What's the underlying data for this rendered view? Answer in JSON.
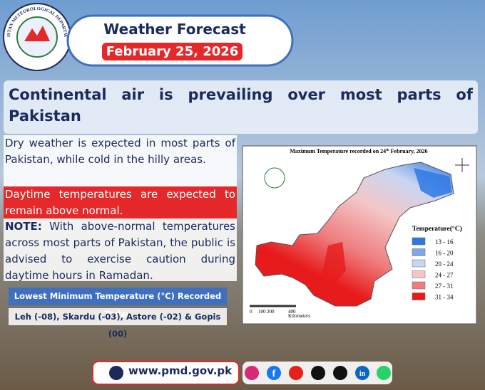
{
  "header": {
    "title": "Weather Forecast",
    "date": "February 25, 2026",
    "logo_text": "PAKISTAN METEOROLOGICAL DEPARTMENT"
  },
  "headline": "Continental air is prevailing over most parts of Pakistan",
  "body": {
    "paragraph": "Dry weather is expected in most parts of Pakistan, while cold in the hilly areas.",
    "highlight": "Daytime temperatures are expected to remain above normal.",
    "note_label": "NOTE:",
    "note_text": "With above-normal temperatures across most parts of Pakistan, the public is advised to exercise caution during daytime hours in Ramadan."
  },
  "lowest_min": {
    "title": "Lowest Minimum Temperature (°C) Recorded Today",
    "text": "Leh (-08), Skardu (-03), Astore (-02) & Gopis (00)"
  },
  "map": {
    "title_pre": "Maximum Temperature  recorded on 24",
    "title_sup": "th",
    "title_post": " February, 2026",
    "legend_title": "Temperature(°C)",
    "legend": [
      {
        "label": "13 - 16",
        "color": "#2f78e4"
      },
      {
        "label": "16 - 20",
        "color": "#7ea8ec"
      },
      {
        "label": "20 - 24",
        "color": "#c9d6f3"
      },
      {
        "label": "24 - 27",
        "color": "#f4c6c6"
      },
      {
        "label": "27 - 31",
        "color": "#ee7c7e"
      },
      {
        "label": "31 - 34",
        "color": "#e71b1b"
      }
    ],
    "scale": [
      "0",
      "100",
      "200",
      "400"
    ],
    "scale_unit": "Kilometers"
  },
  "footer": {
    "url": "www.pmd.gov.pk",
    "facebook": "f",
    "linkedin": "in"
  }
}
